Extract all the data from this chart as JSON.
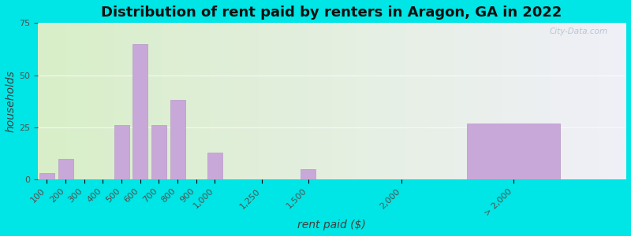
{
  "title": "Distribution of rent paid by renters in Aragon, GA in 2022",
  "xlabel": "rent paid ($)",
  "ylabel": "households",
  "tick_positions": [
    100,
    200,
    300,
    400,
    500,
    600,
    700,
    800,
    900,
    1000,
    1250,
    1500,
    2000,
    2600
  ],
  "tick_labels": [
    "100",
    "200",
    "300",
    "400",
    "500",
    "600",
    "700",
    "800",
    "900",
    "1,000",
    "1,250",
    "1,500",
    "2,000",
    "> 2,000"
  ],
  "bar_centers": [
    100,
    200,
    300,
    400,
    500,
    600,
    700,
    800,
    900,
    1000,
    1250,
    1500,
    2000,
    2600
  ],
  "bar_values": [
    3,
    10,
    0,
    0,
    26,
    65,
    26,
    38,
    0,
    13,
    0,
    5,
    0,
    27
  ],
  "bar_widths": [
    80,
    80,
    80,
    80,
    80,
    80,
    80,
    80,
    80,
    80,
    200,
    80,
    80,
    500
  ],
  "bar_color": "#c8a8d8",
  "bar_edge_color": "#b898c8",
  "ylim": [
    0,
    75
  ],
  "yticks": [
    0,
    25,
    50,
    75
  ],
  "xlim": [
    50,
    3200
  ],
  "title_fontsize": 13,
  "axis_label_fontsize": 10,
  "tick_fontsize": 8,
  "background_outer": "#00e5e5",
  "background_plot_left": "#d8eec8",
  "background_plot_right": "#f0f0f8",
  "watermark": "City-Data.com"
}
